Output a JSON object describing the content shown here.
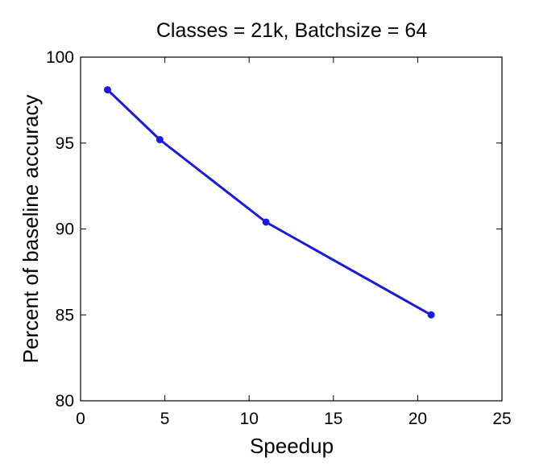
{
  "chart_data": {
    "type": "line",
    "title": "Classes = 21k, Batchsize = 64",
    "xlabel": "Speedup",
    "ylabel": "Percent of baseline accuracy",
    "xlim": [
      0,
      25
    ],
    "ylim": [
      80,
      100
    ],
    "xticks": [
      "0",
      "5",
      "10",
      "15",
      "20",
      "25"
    ],
    "yticks": [
      "80",
      "85",
      "90",
      "95",
      "100"
    ],
    "grid": false,
    "series": [
      {
        "x": [
          1.6,
          4.7,
          11.0,
          20.8
        ],
        "y": [
          98.1,
          95.2,
          90.4,
          85.0
        ],
        "color": "#1a1adf",
        "marker": "circle"
      }
    ]
  }
}
